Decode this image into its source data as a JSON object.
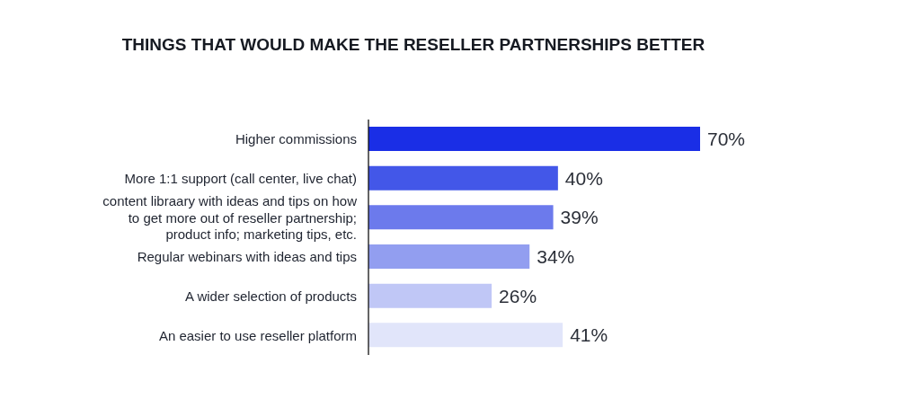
{
  "chart_data": {
    "type": "bar",
    "orientation": "horizontal",
    "title": "THINGS THAT WOULD MAKE THE RESELLER PARTNERSHIPS BETTER",
    "categories": [
      "Higher commissions",
      "More 1:1 support (call center, live chat)",
      "content libraary with ideas and tips on how to get more out of reseller partnership; product info; marketing tips, etc.",
      "Regular webinars with ideas and tips",
      "A wider selection of products",
      "An easier to use reseller platform"
    ],
    "values": [
      70,
      40,
      39,
      34,
      26,
      41
    ],
    "colors": [
      "#1a2ee6",
      "#4357e8",
      "#6c7aec",
      "#929ef0",
      "#c0c7f6",
      "#e1e5fa"
    ],
    "value_labels": [
      "70%",
      "40%",
      "39%",
      "34%",
      "26%",
      "41%"
    ]
  }
}
